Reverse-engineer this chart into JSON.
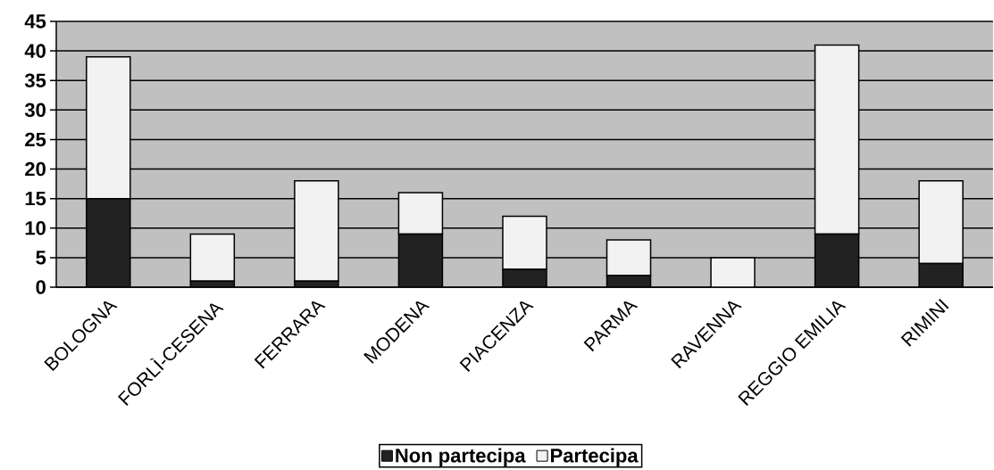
{
  "chart_data": {
    "type": "bar",
    "stacked": true,
    "categories": [
      "BOLOGNA",
      "FORLÌ-CESENA",
      "FERRARA",
      "MODENA",
      "PIACENZA",
      "PARMA",
      "RAVENNA",
      "REGGIO EMILIA",
      "RIMINI"
    ],
    "series": [
      {
        "name": "Non partecipa",
        "color": "#222222",
        "values": [
          15,
          1,
          1,
          9,
          3,
          2,
          0,
          9,
          4
        ]
      },
      {
        "name": "Partecipa",
        "color": "#f2f2f2",
        "values": [
          24,
          8,
          17,
          7,
          9,
          6,
          5,
          32,
          14
        ]
      }
    ],
    "ylim": [
      0,
      45
    ],
    "yticks": [
      0,
      5,
      10,
      15,
      20,
      25,
      30,
      35,
      40,
      45
    ],
    "grid": "y",
    "legend": "bottom"
  }
}
